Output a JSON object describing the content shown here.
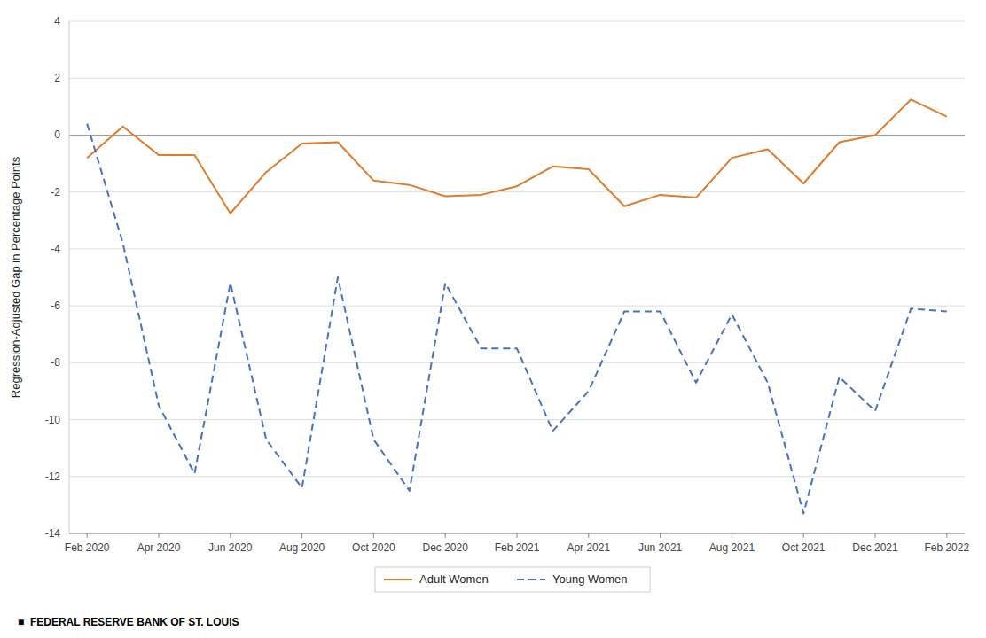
{
  "chart_data": {
    "type": "line",
    "categories": [
      "Feb 2020",
      null,
      "Apr 2020",
      null,
      "Jun 2020",
      null,
      "Aug 2020",
      null,
      "Oct 2020",
      null,
      "Dec 2020",
      null,
      "Feb 2021",
      null,
      "Apr 2021",
      null,
      "Jun 2021",
      null,
      "Aug 2021",
      null,
      "Oct 2021",
      null,
      "Dec 2021",
      null,
      "Feb 2022"
    ],
    "series": [
      {
        "name": "Adult Women",
        "color": "#E07B2A",
        "line_style": "solid",
        "values": [
          -0.8,
          0.3,
          -0.7,
          -0.7,
          -2.75,
          -1.3,
          -0.3,
          -0.25,
          -1.6,
          -1.75,
          -2.15,
          -2.1,
          -1.8,
          -1.1,
          -1.2,
          -2.5,
          -2.1,
          -2.2,
          -0.8,
          -0.5,
          -1.7,
          -0.25,
          0.0,
          1.25,
          0.65
        ]
      },
      {
        "name": "Young Women",
        "color": "#4472C4",
        "line_style": "dashed",
        "values": [
          0.4,
          -3.8,
          -9.5,
          -11.9,
          -5.2,
          -10.7,
          -12.4,
          -5.0,
          -10.7,
          -12.5,
          -5.2,
          -7.5,
          -7.5,
          -10.4,
          -9.0,
          -6.2,
          -6.2,
          -8.7,
          -6.3,
          -8.7,
          -13.3,
          -8.5,
          -9.7,
          -6.1,
          -6.2
        ]
      }
    ],
    "ylim": [
      -14,
      4
    ],
    "yticks": [
      -14,
      -12,
      -10,
      -8,
      -6,
      -4,
      -2,
      0,
      2,
      4
    ],
    "y_label": "Regression-Adjusted Gap in Percentage Points",
    "annotations": [
      "■  FEDERAL RESERVE BANK OF ST. LOUIS"
    ],
    "grid": true,
    "legend": "bottom"
  }
}
